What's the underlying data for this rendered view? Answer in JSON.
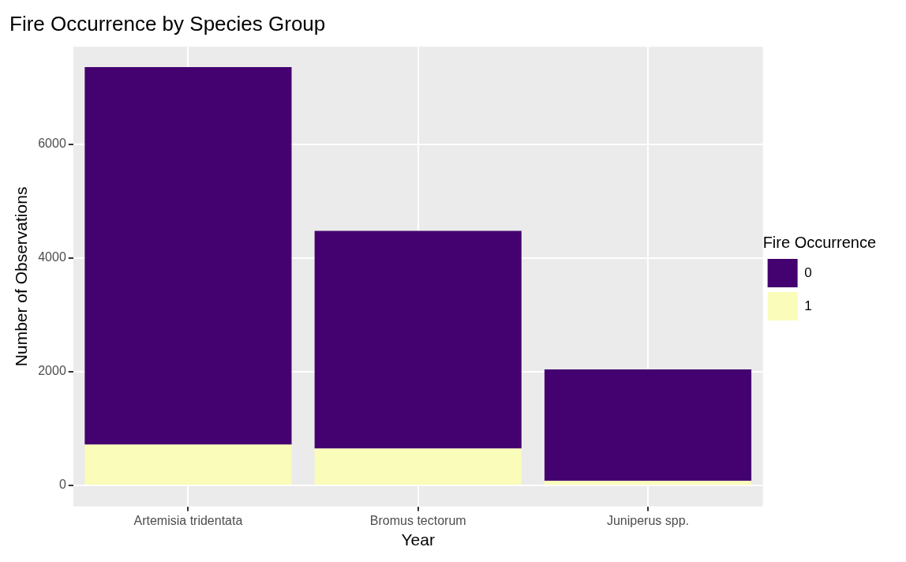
{
  "chart_data": {
    "type": "bar",
    "title": "Fire Occurrence by Species Group",
    "xlabel": "Year",
    "ylabel": "Number of Observations",
    "legend_title": "Fire Occurrence",
    "categories": [
      "Artemisia tridentata",
      "Bromus tectorum",
      "Juniperus spp."
    ],
    "stacked": true,
    "series": [
      {
        "name": "1",
        "color": "#fafcb9",
        "values": [
          720,
          650,
          80
        ]
      },
      {
        "name": "0",
        "color": "#440270",
        "values": [
          6640,
          3830,
          1960
        ]
      }
    ],
    "ylim": [
      -370,
      7720
    ],
    "yticks": [
      0,
      2000,
      4000,
      6000
    ],
    "grid": true,
    "legend": "right"
  }
}
